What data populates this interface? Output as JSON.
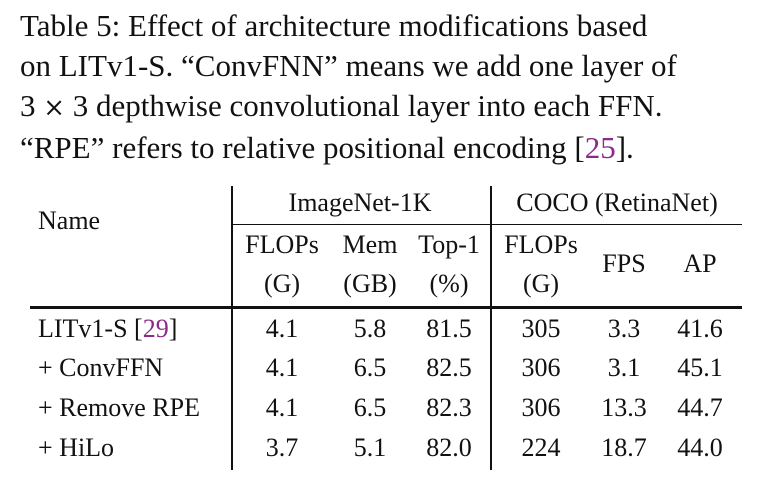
{
  "caption": {
    "line1": "Table 5: Effect of architecture modifications based",
    "line2": "on LITv1-S. “ConvFNN” means we add one layer of",
    "line3_pre": "3",
    "line3_times": "×",
    "line3_post": "3 depthwise convolutional layer into each FFN.",
    "line4_pre": "“RPE” refers to relative positional encoding [",
    "line4_ref": "25",
    "line4_post": "]."
  },
  "table": {
    "header": {
      "name": "Name",
      "group_imagenet": "ImageNet-1K",
      "group_coco": "COCO (RetinaNet)",
      "flops1": "FLOPs",
      "flops1_unit": "(G)",
      "mem": "Mem",
      "mem_unit": "(GB)",
      "top1": "Top-1",
      "top1_unit": "(%)",
      "flops2": "FLOPs",
      "flops2_unit": "(G)",
      "fps": "FPS",
      "ap": "AP"
    },
    "rows": [
      {
        "name": "LITv1-S [",
        "ref": "29",
        "name_post": "]",
        "flops1": "4.1",
        "mem": "5.8",
        "top1": "81.5",
        "flops2": "305",
        "fps": "3.3",
        "ap": "41.6"
      },
      {
        "name": "+ ConvFFN",
        "ref": "",
        "name_post": "",
        "flops1": "4.1",
        "mem": "6.5",
        "top1": "82.5",
        "flops2": "306",
        "fps": "3.1",
        "ap": "45.1"
      },
      {
        "name": "+ Remove RPE",
        "ref": "",
        "name_post": "",
        "flops1": "4.1",
        "mem": "6.5",
        "top1": "82.3",
        "flops2": "306",
        "fps": "13.3",
        "ap": "44.7"
      },
      {
        "name": "+ HiLo",
        "ref": "",
        "name_post": "",
        "flops1": "3.7",
        "mem": "5.1",
        "top1": "82.0",
        "flops2": "224",
        "fps": "18.7",
        "ap": "44.0"
      }
    ]
  },
  "colors": {
    "text": "#111111",
    "reference_link": "#8a2a8a"
  }
}
